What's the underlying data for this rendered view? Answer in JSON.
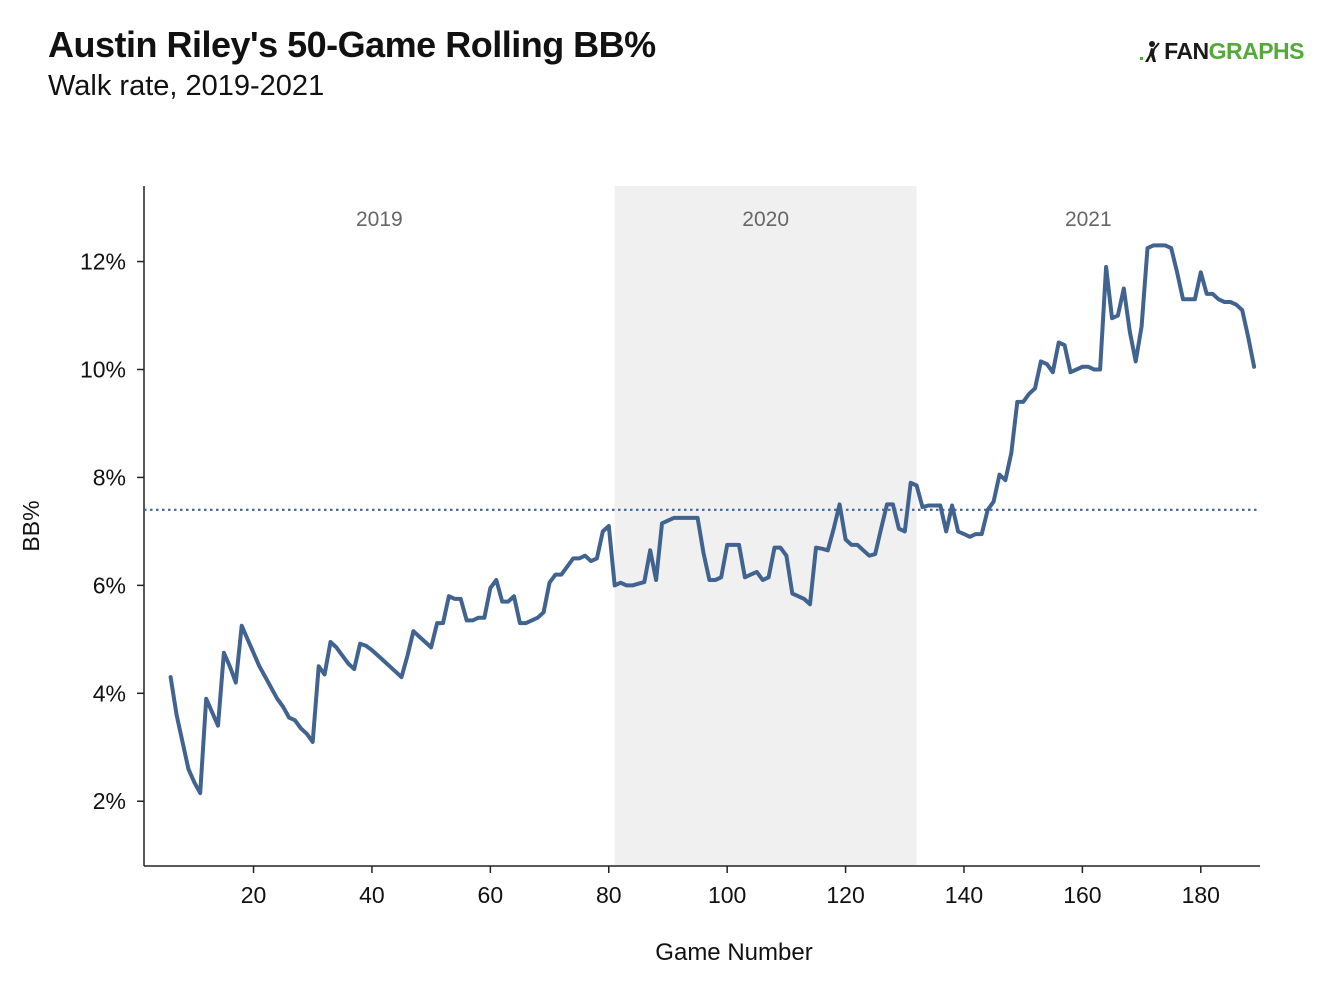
{
  "header": {
    "title": "Austin Riley's 50-Game Rolling BB%",
    "subtitle": "Walk rate, 2019-2021"
  },
  "logo": {
    "icon": "fangraphs-player-icon",
    "text_a": "FAN",
    "text_b": "GRAPHS",
    "color_a": "#1a1a1a",
    "color_b": "#55a93a"
  },
  "chart_data": {
    "type": "line",
    "xlabel": "Game Number",
    "ylabel": "BB%",
    "xlim": [
      1.5,
      190
    ],
    "ylim": [
      0.8,
      13.4
    ],
    "xticks": [
      20,
      40,
      60,
      80,
      100,
      120,
      140,
      160,
      180
    ],
    "yticks": [
      2,
      4,
      6,
      8,
      10,
      12
    ],
    "ytick_suffix": "%",
    "grid": false,
    "line_color": "#41638f",
    "reference_line": {
      "y": 7.4,
      "style": "dotted",
      "color": "#41638f"
    },
    "season_bands": [
      {
        "label": "2019",
        "start": 1.5,
        "end": 81,
        "shaded": false
      },
      {
        "label": "2020",
        "start": 81,
        "end": 132,
        "shaded": true,
        "color": "#f0f0f0"
      },
      {
        "label": "2021",
        "start": 132,
        "end": 190,
        "shaded": false
      }
    ],
    "series": [
      {
        "x": [
          6,
          7,
          8,
          9,
          10,
          11,
          12,
          13,
          14,
          15,
          16,
          17,
          18,
          19,
          20,
          21,
          22,
          23,
          24,
          25,
          26,
          27,
          28,
          29,
          30,
          31,
          32,
          33,
          34,
          35,
          36,
          37,
          38,
          39,
          40,
          41,
          42,
          43,
          44,
          45,
          46,
          47,
          48,
          49,
          50,
          51,
          52,
          53,
          54,
          55,
          56,
          57,
          58,
          59,
          60,
          61,
          62,
          63,
          64,
          65,
          66,
          67,
          68,
          69,
          70,
          71,
          72,
          73,
          74,
          75,
          76,
          77,
          78,
          79,
          80,
          81,
          82,
          83,
          84,
          85,
          86,
          87,
          88,
          89,
          90,
          91,
          92,
          93,
          94,
          95,
          96,
          97,
          98,
          99,
          100,
          101,
          102,
          103,
          104,
          105,
          106,
          107,
          108,
          109,
          110,
          111,
          112,
          113,
          114,
          115,
          116,
          117,
          118,
          119,
          120,
          121,
          122,
          123,
          124,
          125,
          126,
          127,
          128,
          129,
          130,
          131,
          132,
          133,
          134,
          135,
          136,
          137,
          138,
          139,
          140,
          141,
          142,
          143,
          144,
          145,
          146,
          147,
          148,
          149,
          150,
          151,
          152,
          153,
          154,
          155,
          156,
          157,
          158,
          159,
          160,
          161,
          162,
          163,
          164,
          165,
          166,
          167,
          168,
          169,
          170,
          171,
          172,
          173,
          174,
          175,
          176,
          177,
          178,
          179,
          180,
          181,
          182,
          183,
          184,
          185,
          186,
          187,
          188,
          189
        ],
        "y": [
          4.3,
          3.6,
          3.1,
          2.6,
          2.35,
          2.15,
          3.9,
          3.65,
          3.4,
          4.75,
          4.5,
          4.2,
          5.25,
          5.0,
          4.75,
          4.5,
          4.3,
          4.1,
          3.9,
          3.75,
          3.55,
          3.5,
          3.35,
          3.25,
          3.1,
          4.5,
          4.35,
          4.95,
          4.85,
          4.7,
          4.55,
          4.45,
          4.92,
          4.88,
          4.8,
          4.7,
          4.6,
          4.5,
          4.4,
          4.3,
          4.7,
          5.15,
          5.05,
          4.95,
          4.85,
          5.3,
          5.3,
          5.8,
          5.75,
          5.75,
          5.35,
          5.35,
          5.4,
          5.4,
          5.95,
          6.1,
          5.7,
          5.7,
          5.8,
          5.3,
          5.3,
          5.35,
          5.4,
          5.5,
          6.05,
          6.2,
          6.2,
          6.35,
          6.5,
          6.5,
          6.55,
          6.45,
          6.5,
          7.0,
          7.1,
          6.0,
          6.05,
          6.0,
          6.0,
          6.03,
          6.06,
          6.65,
          6.1,
          7.15,
          7.2,
          7.25,
          7.25,
          7.25,
          7.25,
          7.25,
          6.6,
          6.1,
          6.1,
          6.15,
          6.75,
          6.75,
          6.75,
          6.15,
          6.2,
          6.25,
          6.1,
          6.15,
          6.7,
          6.7,
          6.55,
          5.85,
          5.8,
          5.75,
          5.65,
          6.7,
          6.68,
          6.65,
          7.05,
          7.5,
          6.85,
          6.75,
          6.75,
          6.65,
          6.55,
          6.58,
          7.05,
          7.5,
          7.5,
          7.05,
          7.0,
          7.9,
          7.85,
          7.45,
          7.48,
          7.48,
          7.48,
          7.0,
          7.48,
          7.0,
          6.95,
          6.9,
          6.95,
          6.95,
          7.4,
          7.55,
          8.05,
          7.95,
          8.45,
          9.4,
          9.4,
          9.55,
          9.65,
          10.15,
          10.1,
          9.95,
          10.5,
          10.45,
          9.95,
          10.0,
          10.05,
          10.05,
          10.0,
          10.0,
          11.9,
          10.95,
          11.0,
          11.5,
          10.7,
          10.15,
          10.8,
          12.25,
          12.3,
          12.3,
          12.3,
          12.25,
          11.8,
          11.3,
          11.3,
          11.3,
          11.8,
          11.4,
          11.4,
          11.3,
          11.25,
          11.25,
          11.2,
          11.1,
          10.6,
          10.05
        ]
      }
    ]
  }
}
